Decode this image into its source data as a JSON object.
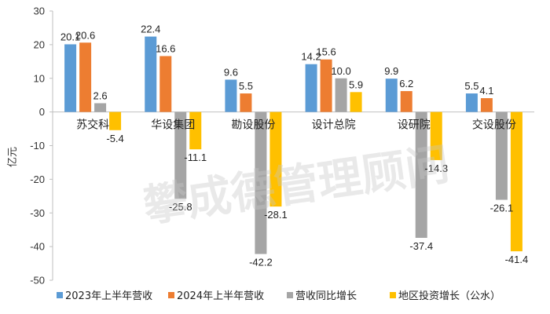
{
  "chart_data": {
    "type": "bar",
    "ylabel": "亿元",
    "ylim": [
      -50,
      30
    ],
    "yticks": [
      30,
      20,
      10,
      0,
      -10,
      -20,
      -30,
      -40,
      -50
    ],
    "grid": false,
    "legend_position": "bottom",
    "categories": [
      "苏交科",
      "华设集团",
      "勘设股份",
      "设计总院",
      "设研院",
      "交设股份"
    ],
    "series": [
      {
        "name": "2023年上半年营收",
        "color": "#5B9BD5",
        "values": [
          20.1,
          22.4,
          9.6,
          14.2,
          9.9,
          5.5
        ]
      },
      {
        "name": "2024年上半年营收",
        "color": "#ED7D31",
        "values": [
          20.6,
          16.6,
          5.5,
          15.6,
          6.2,
          4.1
        ]
      },
      {
        "name": "营收同比增长",
        "color": "#A5A5A5",
        "values": [
          2.6,
          -25.8,
          -42.2,
          10.0,
          -37.4,
          -26.1
        ]
      },
      {
        "name": "地区投资增长（公水）",
        "color": "#FFC000",
        "values": [
          -5.4,
          -11.1,
          -28.1,
          5.9,
          -14.3,
          -41.4
        ]
      }
    ],
    "data_labels": [
      [
        "20.1",
        "22.4",
        "9.6",
        "14.2",
        "9.9",
        "5.5"
      ],
      [
        "20.6",
        "16.6",
        "5.5",
        "15.6",
        "6.2",
        "4.1"
      ],
      [
        "2.6",
        "-25.8",
        "-42.2",
        "10.0",
        "-37.4",
        "-26.1"
      ],
      [
        "-5.4",
        "-11.1",
        "-28.1",
        "5.9",
        "-14.3",
        "-41.4"
      ]
    ]
  },
  "watermark": "攀成德管理顾问"
}
